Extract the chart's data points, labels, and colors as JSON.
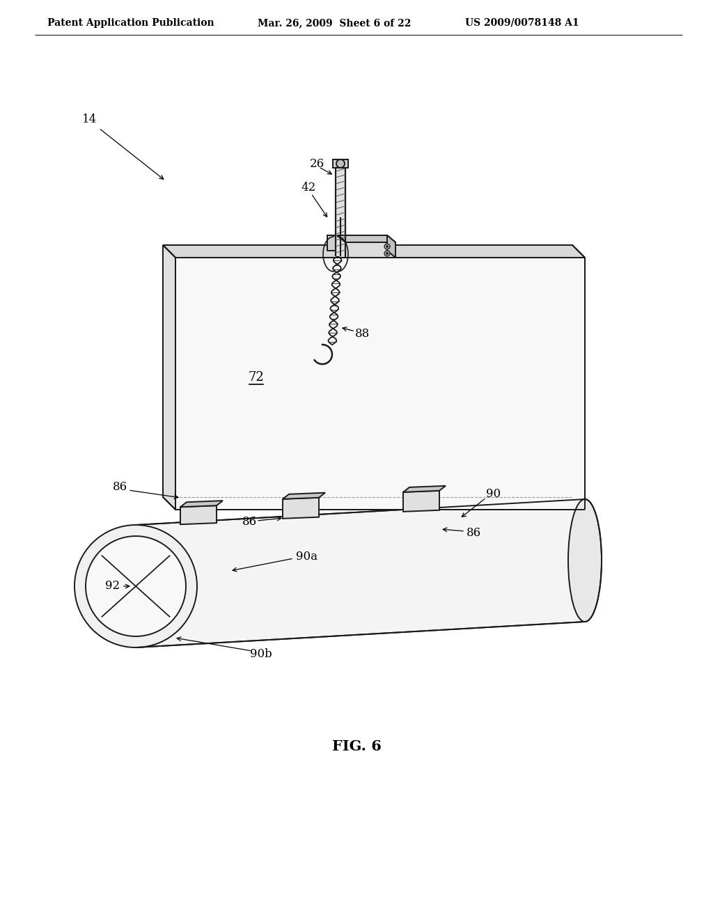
{
  "bg_color": "#ffffff",
  "lc": "#1a1a1a",
  "lw": 1.4,
  "header_left": "Patent Application Publication",
  "header_mid": "Mar. 26, 2009  Sheet 6 of 22",
  "header_right": "US 2009/0078148 A1",
  "fig_caption": "FIG. 6",
  "label_fs": 12,
  "header_fs": 10,
  "caption_fs": 15
}
